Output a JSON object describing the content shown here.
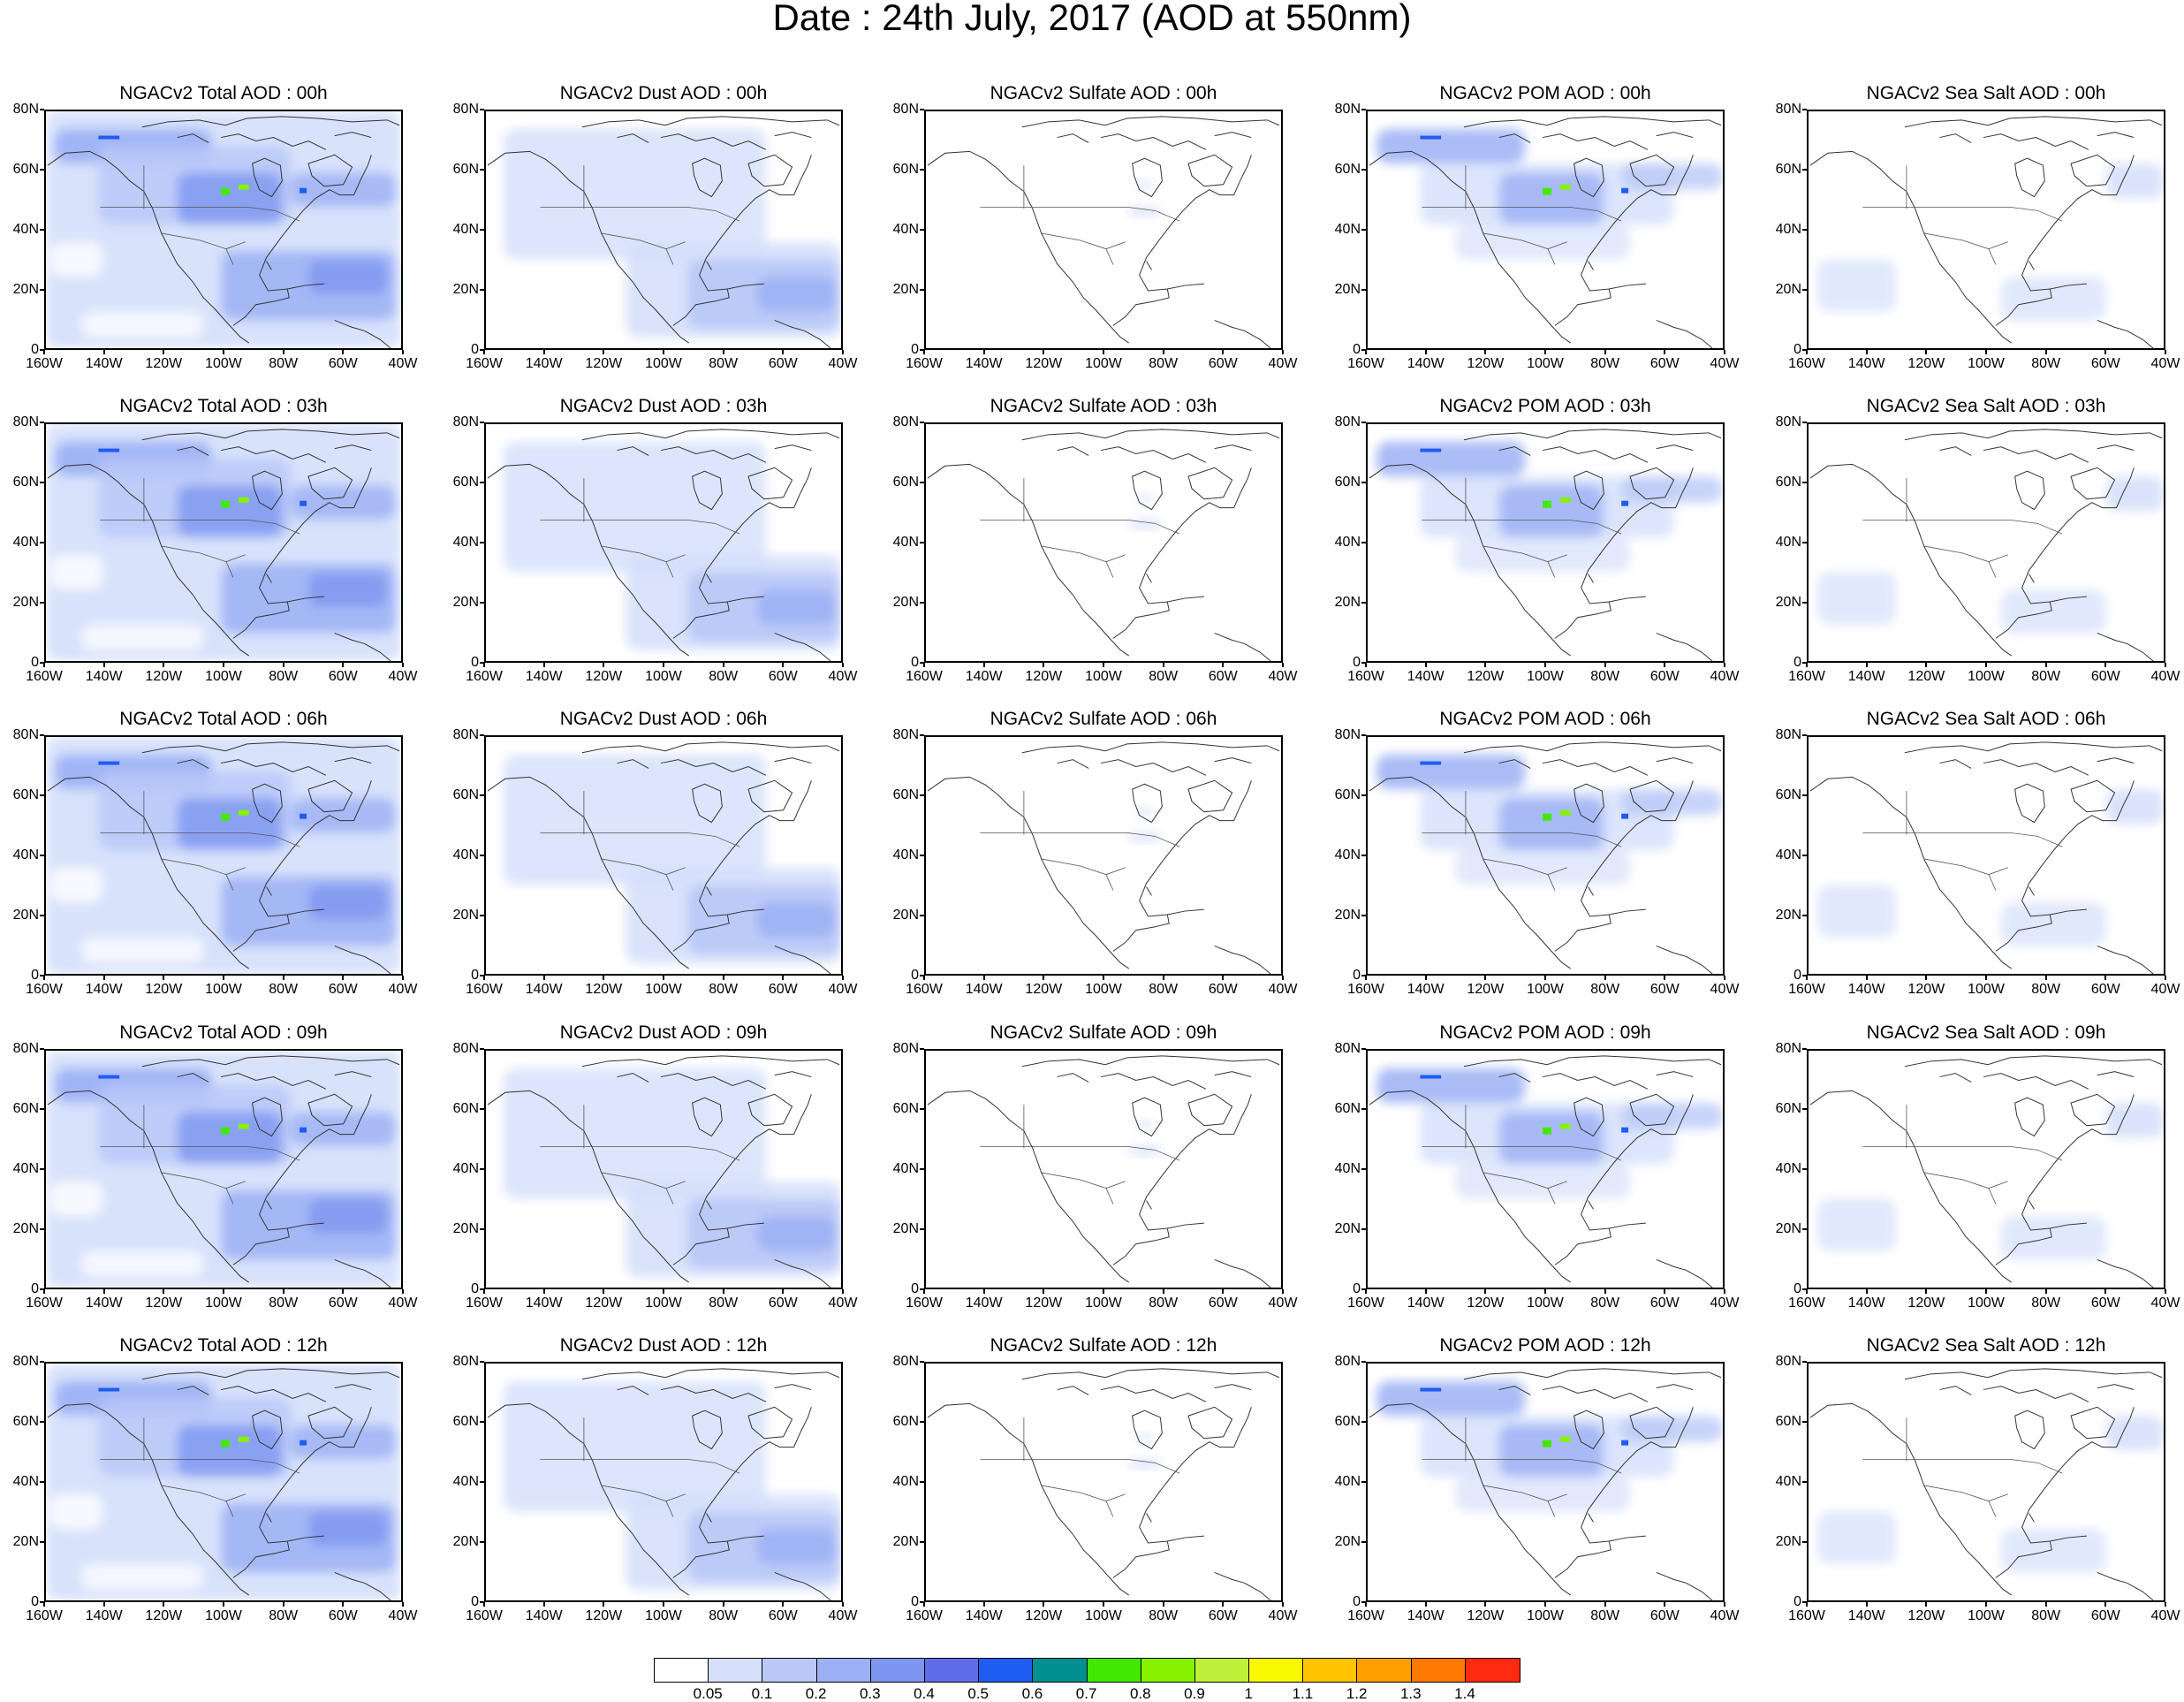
{
  "title": "Date : 24th July, 2017 (AOD at 550nm)",
  "panels": [
    [
      "NGACv2 Total AOD : 00h",
      "NGACv2 Dust AOD : 00h",
      "NGACv2 Sulfate AOD : 00h",
      "NGACv2 POM AOD : 00h",
      "NGACv2 Sea Salt AOD : 00h"
    ],
    [
      "NGACv2 Total AOD : 03h",
      "NGACv2 Dust AOD : 03h",
      "NGACv2 Sulfate AOD : 03h",
      "NGACv2 POM AOD : 03h",
      "NGACv2 Sea Salt AOD : 03h"
    ],
    [
      "NGACv2 Total AOD : 06h",
      "NGACv2 Dust AOD : 06h",
      "NGACv2 Sulfate AOD : 06h",
      "NGACv2 POM AOD : 06h",
      "NGACv2 Sea Salt AOD : 06h"
    ],
    [
      "NGACv2 Total AOD : 09h",
      "NGACv2 Dust AOD : 09h",
      "NGACv2 Sulfate AOD : 09h",
      "NGACv2 POM AOD : 09h",
      "NGACv2 Sea Salt  AOD : 09h"
    ],
    [
      "NGACv2 Total AOD  : 12h",
      "NGACv2 Dust AOD : 12h",
      "NGACv2 Sulfate AOD : 12h",
      "NGACv2 POM  AOD : 12h",
      "NGACv2 Sea Salt  AOD : 12h"
    ]
  ],
  "lat_labels": [
    "80N",
    "60N",
    "40N",
    "20N",
    "0"
  ],
  "lon_labels": [
    "160W",
    "140W",
    "120W",
    "100W",
    "80W",
    "60W",
    "40W"
  ],
  "colorbar": {
    "labels": [
      "0.05",
      "0.1",
      "0.2",
      "0.3",
      "0.4",
      "0.5",
      "0.6",
      "0.7",
      "0.8",
      "0.9",
      "1",
      "1.1",
      "1.2",
      "1.3",
      "1.4"
    ],
    "colors": [
      "#ffffff",
      "#d6e0fb",
      "#b9c8f8",
      "#9bb0f5",
      "#7e96f0",
      "#5f6ee8",
      "#1f5cf2",
      "#00908f",
      "#42e800",
      "#86f200",
      "#bff03a",
      "#f8f800",
      "#ffc400",
      "#ffa000",
      "#ff7800",
      "#ff2a10"
    ]
  }
}
